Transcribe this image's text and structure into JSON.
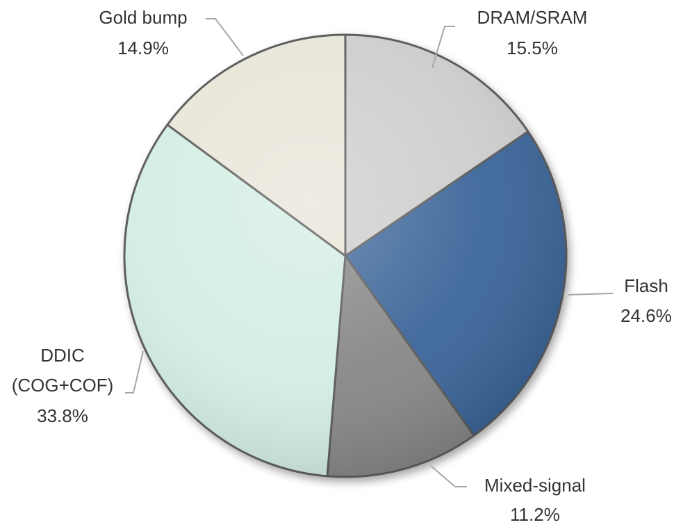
{
  "chart_data": {
    "type": "pie",
    "start_angle_deg": 0,
    "direction": "clockwise",
    "slices": [
      {
        "label": "DRAM/SRAM",
        "value": 15.5,
        "display": "15.5%",
        "color": "#cdcdcd"
      },
      {
        "label": "Flash",
        "value": 24.6,
        "display": "24.6%",
        "color": "#3a6599"
      },
      {
        "label": "Mixed-signal",
        "value": 11.2,
        "display": "11.2%",
        "color": "#878787"
      },
      {
        "label": "DDIC (COG+COF)",
        "label_lines": [
          "DDIC",
          "(COG+COF)"
        ],
        "value": 33.8,
        "display": "33.8%",
        "color": "#d3eee3"
      },
      {
        "label": "Gold bump",
        "value": 14.9,
        "display": "14.9%",
        "color": "#e8e5d8"
      }
    ]
  }
}
